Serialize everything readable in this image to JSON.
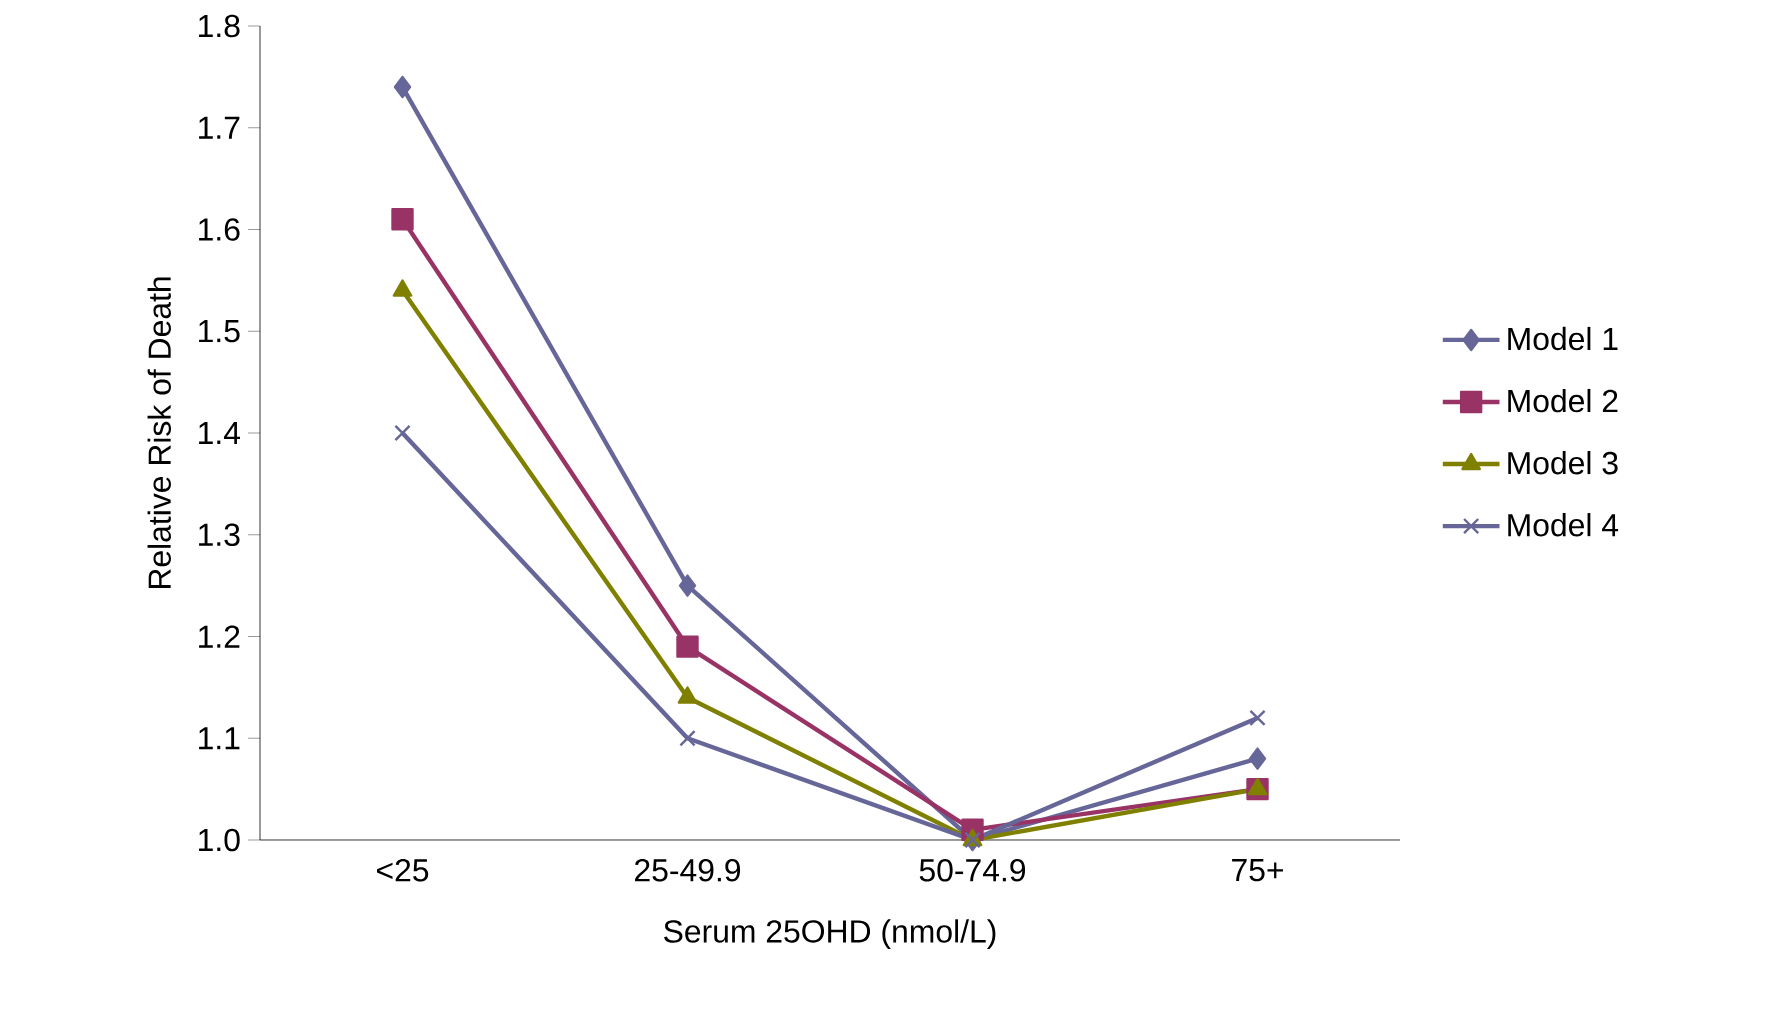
{
  "chart_data": {
    "type": "line",
    "xlabel": "Serum 25OHD (nmol/L)",
    "ylabel": "Relative Risk of Death",
    "categories": [
      "<25",
      "25-49.9",
      "50-74.9",
      "75+"
    ],
    "series": [
      {
        "name": "Model 1",
        "color": "#666699",
        "marker": "diamond",
        "values": [
          1.74,
          1.25,
          1.0,
          1.08
        ]
      },
      {
        "name": "Model 2",
        "color": "#993366",
        "marker": "square",
        "values": [
          1.61,
          1.19,
          1.01,
          1.05
        ]
      },
      {
        "name": "Model 3",
        "color": "#808000",
        "marker": "triangle",
        "values": [
          1.54,
          1.14,
          1.0,
          1.05
        ]
      },
      {
        "name": "Model 4",
        "color": "#666699",
        "marker": "cross",
        "values": [
          1.4,
          1.1,
          1.0,
          1.12
        ]
      }
    ],
    "ylim": [
      1.0,
      1.8
    ],
    "yticks": [
      {
        "value": 1.0,
        "label": "1.0"
      },
      1.1,
      1.2,
      1.3,
      1.4,
      1.5,
      1.6,
      1.7,
      {
        "value": 1.8,
        "label": "1.8"
      }
    ],
    "grid": false,
    "legend": "right",
    "line_style": "solid"
  }
}
